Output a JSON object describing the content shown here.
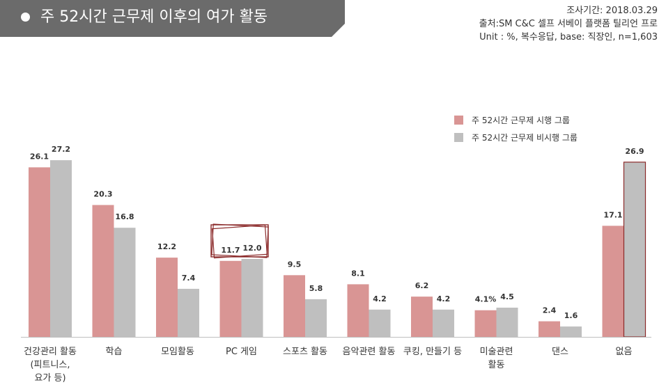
{
  "header": {
    "title": "주 52시간 근무제 이후의 여가 활동",
    "survey_date": "조사기간: 2018.03.29",
    "source": "출처:SM C&C 셀프 서베이 플랫폼 틸리언 프로",
    "unit": "Unit : %, 복수응답, base: 직장인, n=1,603"
  },
  "colors": {
    "header_bg": "#6b6b6b",
    "series1": "#d99594",
    "series2": "#bfbfbf",
    "highlight": "#8b2a2a"
  },
  "chart_data": {
    "type": "bar",
    "categories": [
      "건강관리 활동 (피트니스, 요가 등)",
      "학습",
      "모임활동",
      "PC 게임",
      "스포츠 활동",
      "음악관련 활동",
      "쿠킹, 만들기 등",
      "미술관련 활동",
      "댄스",
      "없음"
    ],
    "category_lines": [
      [
        "건강관리 활동",
        "(피트니스,",
        "요가 등)"
      ],
      [
        "학습"
      ],
      [
        "모임활동"
      ],
      [
        "PC 게임"
      ],
      [
        "스포츠 활동"
      ],
      [
        "음악관련 활동"
      ],
      [
        "쿠킹, 만들기 등"
      ],
      [
        "미술관련",
        "활동"
      ],
      [
        "댄스"
      ],
      [
        "없음"
      ]
    ],
    "series": [
      {
        "name": "주 52시간 근무제 시행 그룹",
        "values": [
          26.1,
          20.3,
          12.2,
          11.7,
          9.5,
          8.1,
          6.2,
          4.1,
          2.4,
          17.1
        ],
        "labels": [
          "26.1",
          "20.3",
          "12.2",
          "11.7",
          "9.5",
          "8.1",
          "6.2",
          "4.1%",
          "2.4",
          "17.1"
        ]
      },
      {
        "name": "주 52시간 근무제 비시행 그룹",
        "values": [
          27.2,
          16.8,
          7.4,
          12.0,
          5.8,
          4.2,
          4.2,
          4.5,
          1.6,
          26.9
        ],
        "labels": [
          "27.2",
          "16.8",
          "7.4",
          "12.0",
          "5.8",
          "4.2",
          "4.2",
          "4.5",
          "1.6",
          "26.9"
        ]
      }
    ],
    "ylim": [
      0,
      30
    ],
    "legend": "top-right"
  }
}
